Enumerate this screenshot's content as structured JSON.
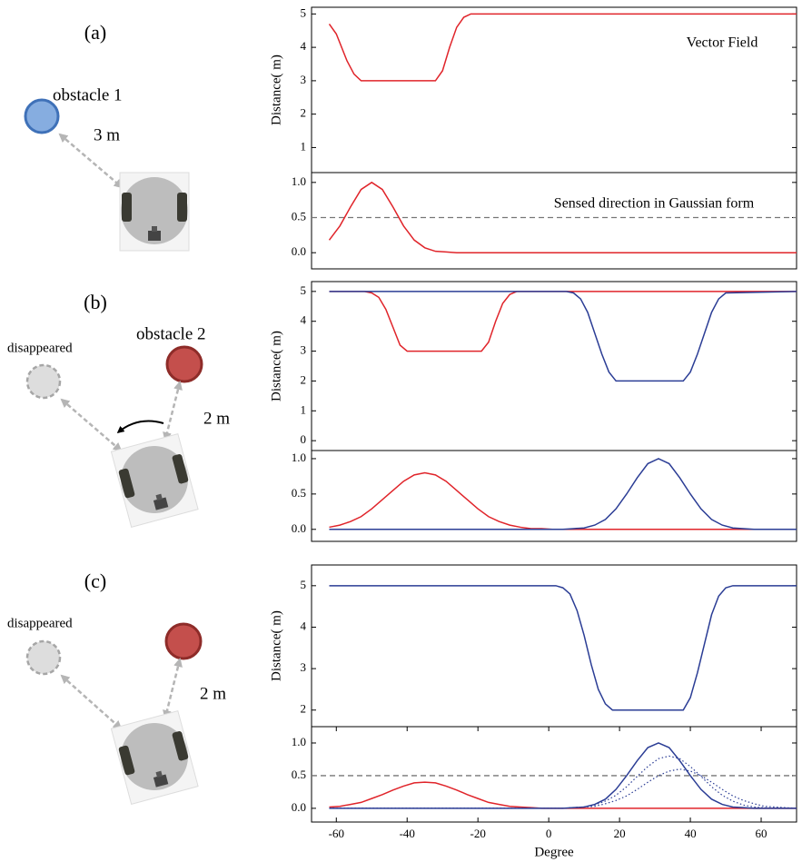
{
  "panels": [
    {
      "label": "(a)",
      "texts": [
        "obstacle 1",
        "3 m"
      ]
    },
    {
      "label": "(b)",
      "texts": [
        "disappeared",
        "obstacle 2",
        "2 m"
      ]
    },
    {
      "label": "(c)",
      "texts": [
        "disappeared",
        "2 m"
      ]
    }
  ],
  "chart_data": [
    {
      "type": "line",
      "ylabel": "Distance( m)",
      "annotation": "Vector Field",
      "xlim": [
        -67,
        70
      ],
      "ylim": [
        0.25,
        5.2
      ],
      "yticks": [
        1,
        2,
        3,
        4,
        5
      ],
      "series": [
        {
          "color": "#e0242a",
          "x": [
            -62,
            -60,
            -57,
            -55,
            -53,
            -32,
            -30,
            -28,
            -26,
            -24,
            -22,
            70
          ],
          "values": [
            4.7,
            4.4,
            3.6,
            3.2,
            3.0,
            3.0,
            3.3,
            4.0,
            4.6,
            4.9,
            5.0,
            5.0
          ]
        }
      ]
    },
    {
      "type": "line",
      "annotation": "Sensed direction in Gaussian form",
      "hline": 0.5,
      "xlim": [
        -67,
        70
      ],
      "ylim": [
        -0.23,
        1.14
      ],
      "yticks": [
        {
          "value": 0,
          "label": "0.0"
        },
        0.5,
        {
          "value": 1,
          "label": "1.0"
        }
      ],
      "series": [
        {
          "color": "#e0242a",
          "x": [
            -62,
            -59,
            -56,
            -53,
            -50,
            -47,
            -44,
            -41,
            -38,
            -35,
            -32,
            -29,
            -26,
            -23,
            -20,
            -17,
            -14,
            -11,
            -8,
            -5,
            -2,
            1,
            4,
            7,
            10,
            13,
            16,
            19,
            22,
            25,
            28,
            31,
            34,
            37,
            40,
            43,
            46,
            49,
            52,
            55,
            58,
            61,
            64,
            67,
            70
          ],
          "values": [
            0.18,
            0.38,
            0.65,
            0.9,
            1,
            0.9,
            0.65,
            0.38,
            0.18,
            0.07,
            0.02,
            0.01,
            0,
            0,
            0,
            0,
            0,
            0,
            0,
            0,
            0,
            0,
            0,
            0,
            0,
            0,
            0,
            0,
            0,
            0,
            0,
            0,
            0,
            0,
            0,
            0,
            0,
            0,
            0,
            0,
            0,
            0,
            0,
            0,
            0
          ]
        }
      ]
    },
    {
      "type": "line",
      "ylabel": "Distance( m)",
      "xlim": [
        -67,
        70
      ],
      "ylim": [
        -0.33,
        5.33
      ],
      "yticks": [
        0,
        1,
        2,
        3,
        4,
        5
      ],
      "series": [
        {
          "color": "#e0242a",
          "x": [
            -62,
            -52,
            -50,
            -48,
            -46,
            -44,
            -42,
            -40,
            -19,
            -17,
            -15,
            -13,
            -11,
            -9,
            70
          ],
          "values": [
            5,
            5,
            4.95,
            4.8,
            4.4,
            3.8,
            3.2,
            3.0,
            3.0,
            3.3,
            4.0,
            4.6,
            4.9,
            5,
            5
          ]
        },
        {
          "color": "#2b3d95",
          "x": [
            -62,
            5,
            7,
            9,
            11,
            13,
            15,
            17,
            19,
            38,
            40,
            42,
            44,
            46,
            48,
            50,
            70
          ],
          "values": [
            5,
            5,
            4.95,
            4.75,
            4.3,
            3.6,
            2.9,
            2.3,
            2.0,
            2.0,
            2.3,
            2.9,
            3.6,
            4.3,
            4.75,
            4.95,
            5
          ]
        }
      ]
    },
    {
      "type": "line",
      "xlim": [
        -67,
        70
      ],
      "ylim": [
        -0.17,
        1.115
      ],
      "yticks": [
        {
          "value": 0,
          "label": "0.0"
        },
        0.5,
        {
          "value": 1,
          "label": "1.0"
        }
      ],
      "series": [
        {
          "color": "#e0242a",
          "x": [
            -62,
            -59,
            -56,
            -53,
            -50,
            -47,
            -44,
            -41,
            -38,
            -35,
            -32,
            -29,
            -26,
            -23,
            -20,
            -17,
            -14,
            -11,
            -8,
            -5,
            -2,
            1,
            4,
            7,
            10,
            13,
            16,
            19,
            22,
            25,
            28,
            31,
            34,
            37,
            40,
            43,
            46,
            49,
            52,
            55,
            58,
            61,
            64,
            67,
            70
          ],
          "values": [
            0.03,
            0.06,
            0.11,
            0.18,
            0.29,
            0.42,
            0.55,
            0.68,
            0.77,
            0.8,
            0.77,
            0.68,
            0.55,
            0.42,
            0.29,
            0.18,
            0.11,
            0.06,
            0.03,
            0.01,
            0.01,
            0,
            0,
            0,
            0,
            0,
            0,
            0,
            0,
            0,
            0,
            0,
            0,
            0,
            0,
            0,
            0,
            0,
            0,
            0,
            0,
            0,
            0,
            0,
            0
          ]
        },
        {
          "color": "#2b3d95",
          "x": [
            -62,
            -59,
            -56,
            -53,
            -50,
            -47,
            -44,
            -41,
            -38,
            -35,
            -32,
            -29,
            -26,
            -23,
            -20,
            -17,
            -14,
            -11,
            -8,
            -5,
            -2,
            1,
            4,
            7,
            10,
            13,
            16,
            19,
            22,
            25,
            28,
            31,
            34,
            37,
            40,
            43,
            46,
            49,
            52,
            55,
            58,
            61,
            64,
            67,
            70
          ],
          "values": [
            0,
            0,
            0,
            0,
            0,
            0,
            0,
            0,
            0,
            0,
            0,
            0,
            0,
            0,
            0,
            0,
            0,
            0,
            0,
            0,
            0,
            0,
            0,
            0.01,
            0.02,
            0.06,
            0.14,
            0.29,
            0.5,
            0.73,
            0.93,
            1,
            0.93,
            0.73,
            0.5,
            0.29,
            0.14,
            0.06,
            0.02,
            0.01,
            0,
            0,
            0,
            0,
            0
          ]
        }
      ]
    },
    {
      "type": "line",
      "ylabel": "Distance( m)",
      "xlim": [
        -67,
        70
      ],
      "ylim": [
        1.6,
        5.5
      ],
      "yticks": [
        2,
        3,
        4,
        5
      ],
      "series": [
        {
          "color": "#2b3d95",
          "x": [
            -62,
            2,
            4,
            6,
            8,
            10,
            12,
            14,
            16,
            18,
            38,
            40,
            42,
            44,
            46,
            48,
            50,
            52,
            70
          ],
          "values": [
            5,
            5,
            4.95,
            4.8,
            4.4,
            3.8,
            3.1,
            2.5,
            2.15,
            2.0,
            2.0,
            2.3,
            2.9,
            3.6,
            4.3,
            4.75,
            4.95,
            5,
            5
          ]
        }
      ]
    },
    {
      "type": "line",
      "xlabel": "Degree",
      "hline": 0.5,
      "xlim": [
        -67,
        70
      ],
      "ylim": [
        -0.21,
        1.25
      ],
      "xticks": [
        -60,
        -40,
        -20,
        0,
        20,
        40,
        60
      ],
      "yticks": [
        {
          "value": 0,
          "label": "0.0"
        },
        0.5,
        {
          "value": 1,
          "label": "1.0"
        }
      ],
      "series": [
        {
          "color": "#e0242a",
          "x": [
            -62,
            -59,
            -56,
            -53,
            -50,
            -47,
            -44,
            -41,
            -38,
            -35,
            -32,
            -29,
            -26,
            -23,
            -20,
            -17,
            -14,
            -11,
            -8,
            -5,
            -2,
            1,
            4,
            7,
            10,
            13,
            16,
            19,
            22,
            25,
            28,
            31,
            34,
            37,
            40,
            43,
            46,
            49,
            52,
            55,
            58,
            61,
            64,
            67,
            70
          ],
          "values": [
            0.02,
            0.03,
            0.06,
            0.09,
            0.15,
            0.21,
            0.28,
            0.34,
            0.39,
            0.4,
            0.39,
            0.34,
            0.28,
            0.21,
            0.15,
            0.09,
            0.06,
            0.03,
            0.02,
            0.01,
            0,
            0,
            0,
            0,
            0,
            0,
            0,
            0,
            0,
            0,
            0,
            0,
            0,
            0,
            0,
            0,
            0,
            0,
            0,
            0,
            0,
            0,
            0,
            0,
            0
          ]
        },
        {
          "color": "#2b3d95",
          "x": [
            -62,
            -59,
            -56,
            -53,
            -50,
            -47,
            -44,
            -41,
            -38,
            -35,
            -32,
            -29,
            -26,
            -23,
            -20,
            -17,
            -14,
            -11,
            -8,
            -5,
            -2,
            1,
            4,
            7,
            10,
            13,
            16,
            19,
            22,
            25,
            28,
            31,
            34,
            37,
            40,
            43,
            46,
            49,
            52,
            55,
            58,
            61,
            64,
            67,
            70
          ],
          "values": [
            0,
            0,
            0,
            0,
            0,
            0,
            0,
            0,
            0,
            0,
            0,
            0,
            0,
            0,
            0,
            0,
            0,
            0,
            0,
            0,
            0,
            0,
            0,
            0.01,
            0.02,
            0.06,
            0.14,
            0.29,
            0.5,
            0.73,
            0.93,
            1,
            0.93,
            0.73,
            0.5,
            0.29,
            0.14,
            0.06,
            0.02,
            0.01,
            0,
            0,
            0,
            0,
            0
          ]
        },
        {
          "color": "#2b3d95",
          "style": "dotted",
          "x": [
            -62,
            -59,
            -56,
            -53,
            -50,
            -47,
            -44,
            -41,
            -38,
            -35,
            -32,
            -29,
            -26,
            -23,
            -20,
            -17,
            -14,
            -11,
            -8,
            -5,
            -2,
            1,
            4,
            7,
            10,
            13,
            16,
            19,
            22,
            25,
            28,
            31,
            34,
            37,
            40,
            43,
            46,
            49,
            52,
            55,
            58,
            61,
            64,
            67,
            70
          ],
          "values": [
            0,
            0,
            0,
            0,
            0,
            0,
            0,
            0,
            0,
            0,
            0,
            0,
            0,
            0,
            0,
            0,
            0,
            0,
            0,
            0,
            0,
            0,
            0,
            0.01,
            0.02,
            0.05,
            0.11,
            0.2,
            0.33,
            0.49,
            0.64,
            0.76,
            0.8,
            0.76,
            0.64,
            0.49,
            0.33,
            0.2,
            0.11,
            0.05,
            0.02,
            0.01,
            0,
            0,
            0
          ]
        },
        {
          "color": "#2b3d95",
          "style": "dotted",
          "x": [
            -62,
            -59,
            -56,
            -53,
            -50,
            -47,
            -44,
            -41,
            -38,
            -35,
            -32,
            -29,
            -26,
            -23,
            -20,
            -17,
            -14,
            -11,
            -8,
            -5,
            -2,
            1,
            4,
            7,
            10,
            13,
            16,
            19,
            22,
            25,
            28,
            31,
            34,
            37,
            40,
            43,
            46,
            49,
            52,
            55,
            58,
            61,
            64,
            67,
            70
          ],
          "values": [
            0,
            0,
            0,
            0,
            0,
            0,
            0,
            0,
            0,
            0,
            0,
            0,
            0,
            0,
            0,
            0,
            0,
            0,
            0,
            0,
            0,
            0,
            0,
            0.01,
            0.02,
            0.03,
            0.07,
            0.12,
            0.19,
            0.29,
            0.4,
            0.5,
            0.57,
            0.6,
            0.57,
            0.5,
            0.4,
            0.29,
            0.19,
            0.12,
            0.07,
            0.03,
            0.02,
            0.01,
            0
          ]
        }
      ]
    }
  ]
}
